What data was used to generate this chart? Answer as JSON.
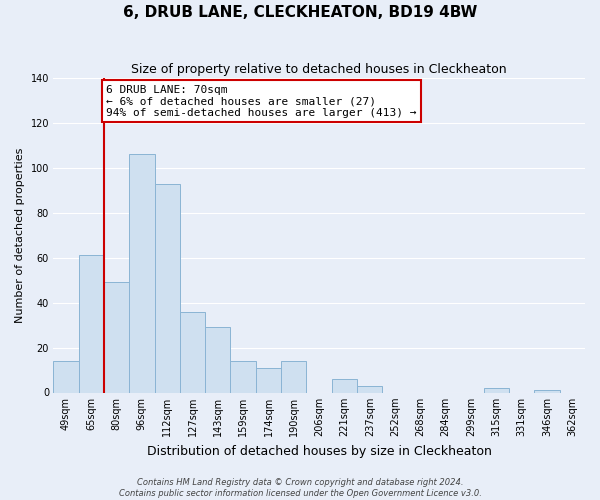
{
  "title": "6, DRUB LANE, CLECKHEATON, BD19 4BW",
  "subtitle": "Size of property relative to detached houses in Cleckheaton",
  "xlabel": "Distribution of detached houses by size in Cleckheaton",
  "ylabel": "Number of detached properties",
  "bar_labels": [
    "49sqm",
    "65sqm",
    "80sqm",
    "96sqm",
    "112sqm",
    "127sqm",
    "143sqm",
    "159sqm",
    "174sqm",
    "190sqm",
    "206sqm",
    "221sqm",
    "237sqm",
    "252sqm",
    "268sqm",
    "284sqm",
    "299sqm",
    "315sqm",
    "331sqm",
    "346sqm",
    "362sqm"
  ],
  "bar_values": [
    14,
    61,
    49,
    106,
    93,
    36,
    29,
    14,
    11,
    14,
    0,
    6,
    3,
    0,
    0,
    0,
    0,
    2,
    0,
    1,
    0
  ],
  "bar_color": "#cfe0f0",
  "bar_edge_color": "#8ab4d4",
  "ylim": [
    0,
    140
  ],
  "yticks": [
    0,
    20,
    40,
    60,
    80,
    100,
    120,
    140
  ],
  "property_line_color": "#cc0000",
  "annotation_title": "6 DRUB LANE: 70sqm",
  "annotation_line1": "← 6% of detached houses are smaller (27)",
  "annotation_line2": "94% of semi-detached houses are larger (413) →",
  "annotation_box_facecolor": "#ffffff",
  "annotation_box_edgecolor": "#cc0000",
  "footer_line1": "Contains HM Land Registry data © Crown copyright and database right 2024.",
  "footer_line2": "Contains public sector information licensed under the Open Government Licence v3.0.",
  "background_color": "#e8eef8",
  "plot_background_color": "#e8eef8",
  "grid_color": "#ffffff",
  "title_fontsize": 11,
  "subtitle_fontsize": 9,
  "xlabel_fontsize": 9,
  "ylabel_fontsize": 8,
  "tick_fontsize": 7,
  "annot_fontsize": 8,
  "footer_fontsize": 6
}
